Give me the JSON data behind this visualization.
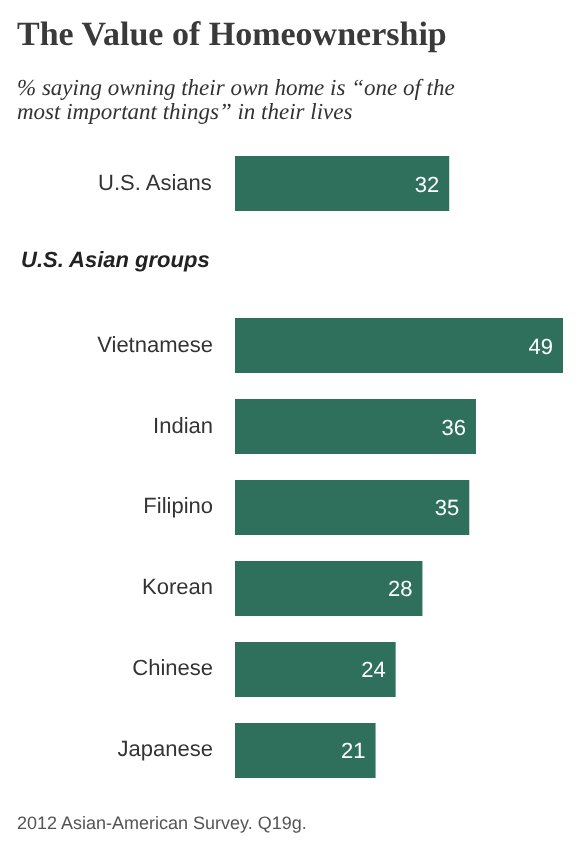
{
  "chart_data": {
    "type": "bar",
    "orientation": "horizontal",
    "title": "The Value of Homeownership",
    "subtitle": "% saying owning their own home is “one of the most important things” in their lives",
    "categories": [
      "U.S. Asians",
      "Vietnamese",
      "Indian",
      "Filipino",
      "Korean",
      "Chinese",
      "Japanese"
    ],
    "values": [
      32,
      49,
      36,
      35,
      28,
      24,
      21
    ],
    "color": "#2f705c",
    "data_labels": true,
    "annotations": [
      "U.S. Asian groups",
      "2012 Asian-American Survey. Q19g."
    ]
  }
}
